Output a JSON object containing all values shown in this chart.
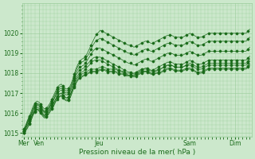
{
  "title": "",
  "xlabel": "Pression niveau de la mer( hPa )",
  "bg_color": "#cce8cc",
  "grid_color": "#99cc99",
  "line_color": "#1a6b1a",
  "marker_color": "#1a6b1a",
  "ylim": [
    1014.8,
    1021.5
  ],
  "yticks": [
    1015,
    1016,
    1017,
    1018,
    1019,
    1020
  ],
  "day_labels": [
    "Mer",
    "Ven",
    "Jeu",
    "Sam",
    "Dim"
  ],
  "day_positions": [
    0,
    8,
    40,
    88,
    112
  ],
  "total_steps": 120,
  "series": [
    [
      1015.0,
      1015.15,
      1015.3,
      1015.5,
      1015.7,
      1015.95,
      1016.1,
      1016.2,
      1016.15,
      1016.05,
      1015.9,
      1015.8,
      1015.85,
      1015.95,
      1016.1,
      1016.25,
      1016.4,
      1016.6,
      1016.75,
      1016.85,
      1016.9,
      1016.8,
      1016.7,
      1016.65,
      1016.7,
      1016.85,
      1017.1,
      1017.35,
      1017.55,
      1017.7,
      1017.8,
      1017.85,
      1017.9,
      1017.95,
      1018.0,
      1018.05,
      1018.1,
      1018.1,
      1018.1,
      1018.1,
      1018.15,
      1018.2,
      1018.2,
      1018.2,
      1018.15,
      1018.1,
      1018.1,
      1018.1,
      1018.1,
      1018.1,
      1018.05,
      1018.0,
      1018.0,
      1018.0,
      1017.95,
      1017.9,
      1017.9,
      1017.9,
      1017.9,
      1017.9,
      1017.95,
      1018.0,
      1018.05,
      1018.1,
      1018.1,
      1018.1,
      1018.1,
      1018.05,
      1018.0,
      1018.0,
      1018.0,
      1018.0,
      1018.0,
      1018.0,
      1018.05,
      1018.1,
      1018.15,
      1018.2,
      1018.2,
      1018.2,
      1018.15,
      1018.1,
      1018.1,
      1018.1,
      1018.1,
      1018.1,
      1018.15,
      1018.2,
      1018.2,
      1018.2,
      1018.15,
      1018.1,
      1018.05,
      1018.0,
      1018.0,
      1018.0,
      1018.05,
      1018.1,
      1018.15,
      1018.2,
      1018.2,
      1018.2,
      1018.2,
      1018.2,
      1018.2,
      1018.2,
      1018.2,
      1018.2,
      1018.2,
      1018.2,
      1018.2,
      1018.2,
      1018.2,
      1018.2,
      1018.2,
      1018.2,
      1018.2,
      1018.2,
      1018.2,
      1018.2,
      1018.3,
      1018.4
    ],
    [
      1015.0,
      1015.2,
      1015.4,
      1015.6,
      1015.8,
      1016.0,
      1016.1,
      1016.2,
      1016.2,
      1016.1,
      1015.95,
      1015.85,
      1015.95,
      1016.05,
      1016.2,
      1016.35,
      1016.5,
      1016.7,
      1016.85,
      1016.95,
      1017.0,
      1016.9,
      1016.8,
      1016.75,
      1016.8,
      1016.95,
      1017.2,
      1017.45,
      1017.65,
      1017.8,
      1017.9,
      1017.95,
      1018.0,
      1018.05,
      1018.1,
      1018.15,
      1018.2,
      1018.2,
      1018.2,
      1018.2,
      1018.25,
      1018.3,
      1018.3,
      1018.3,
      1018.25,
      1018.2,
      1018.2,
      1018.2,
      1018.2,
      1018.2,
      1018.15,
      1018.1,
      1018.1,
      1018.1,
      1018.05,
      1018.0,
      1018.0,
      1018.0,
      1018.0,
      1018.0,
      1018.05,
      1018.1,
      1018.15,
      1018.2,
      1018.2,
      1018.2,
      1018.2,
      1018.15,
      1018.1,
      1018.1,
      1018.1,
      1018.15,
      1018.2,
      1018.2,
      1018.25,
      1018.3,
      1018.35,
      1018.4,
      1018.4,
      1018.4,
      1018.35,
      1018.3,
      1018.3,
      1018.3,
      1018.3,
      1018.3,
      1018.35,
      1018.4,
      1018.4,
      1018.4,
      1018.35,
      1018.3,
      1018.25,
      1018.2,
      1018.2,
      1018.2,
      1018.25,
      1018.3,
      1018.35,
      1018.4,
      1018.4,
      1018.4,
      1018.4,
      1018.4,
      1018.4,
      1018.4,
      1018.4,
      1018.4,
      1018.4,
      1018.4,
      1018.4,
      1018.4,
      1018.4,
      1018.4,
      1018.4,
      1018.4,
      1018.4,
      1018.4,
      1018.4,
      1018.4,
      1018.5,
      1018.6
    ],
    [
      1015.0,
      1015.1,
      1015.25,
      1015.45,
      1015.65,
      1015.9,
      1016.05,
      1016.15,
      1016.1,
      1016.0,
      1015.85,
      1015.75,
      1015.8,
      1015.9,
      1016.05,
      1016.2,
      1016.35,
      1016.55,
      1016.7,
      1016.8,
      1016.85,
      1016.75,
      1016.65,
      1016.6,
      1016.65,
      1016.8,
      1017.05,
      1017.3,
      1017.5,
      1017.65,
      1017.75,
      1017.8,
      1017.85,
      1017.9,
      1017.95,
      1018.0,
      1018.05,
      1018.05,
      1018.05,
      1018.05,
      1018.1,
      1018.15,
      1018.15,
      1018.15,
      1018.1,
      1018.05,
      1018.05,
      1018.05,
      1018.05,
      1018.05,
      1018.0,
      1017.95,
      1017.95,
      1017.95,
      1017.9,
      1017.85,
      1017.85,
      1017.85,
      1017.85,
      1017.85,
      1017.9,
      1017.95,
      1018.0,
      1018.05,
      1018.05,
      1018.05,
      1018.05,
      1018.0,
      1017.95,
      1017.95,
      1017.95,
      1018.0,
      1018.05,
      1018.05,
      1018.1,
      1018.15,
      1018.2,
      1018.25,
      1018.25,
      1018.25,
      1018.2,
      1018.15,
      1018.15,
      1018.15,
      1018.15,
      1018.15,
      1018.2,
      1018.25,
      1018.25,
      1018.25,
      1018.2,
      1018.15,
      1018.1,
      1018.05,
      1018.05,
      1018.05,
      1018.1,
      1018.15,
      1018.2,
      1018.25,
      1018.25,
      1018.25,
      1018.25,
      1018.25,
      1018.25,
      1018.25,
      1018.25,
      1018.25,
      1018.25,
      1018.25,
      1018.25,
      1018.25,
      1018.25,
      1018.25,
      1018.25,
      1018.25,
      1018.25,
      1018.25,
      1018.25,
      1018.25,
      1018.35,
      1018.45
    ],
    [
      1015.1,
      1015.25,
      1015.4,
      1015.6,
      1015.8,
      1016.05,
      1016.2,
      1016.3,
      1016.25,
      1016.15,
      1016.0,
      1015.9,
      1015.95,
      1016.05,
      1016.2,
      1016.35,
      1016.5,
      1016.7,
      1016.85,
      1016.95,
      1017.0,
      1016.9,
      1016.8,
      1016.75,
      1016.8,
      1016.95,
      1017.2,
      1017.5,
      1017.75,
      1017.9,
      1018.0,
      1018.05,
      1018.1,
      1018.2,
      1018.3,
      1018.4,
      1018.5,
      1018.6,
      1018.65,
      1018.65,
      1018.65,
      1018.65,
      1018.6,
      1018.55,
      1018.5,
      1018.45,
      1018.4,
      1018.35,
      1018.3,
      1018.25,
      1018.2,
      1018.15,
      1018.1,
      1018.05,
      1018.0,
      1017.95,
      1017.9,
      1017.9,
      1017.85,
      1017.8,
      1017.85,
      1017.9,
      1017.95,
      1018.0,
      1018.05,
      1018.1,
      1018.1,
      1018.05,
      1018.0,
      1018.0,
      1018.05,
      1018.1,
      1018.15,
      1018.2,
      1018.25,
      1018.3,
      1018.35,
      1018.4,
      1018.4,
      1018.4,
      1018.35,
      1018.3,
      1018.3,
      1018.3,
      1018.3,
      1018.3,
      1018.35,
      1018.4,
      1018.45,
      1018.5,
      1018.45,
      1018.4,
      1018.35,
      1018.3,
      1018.3,
      1018.3,
      1018.35,
      1018.4,
      1018.45,
      1018.5,
      1018.5,
      1018.5,
      1018.5,
      1018.5,
      1018.5,
      1018.5,
      1018.5,
      1018.5,
      1018.5,
      1018.5,
      1018.5,
      1018.5,
      1018.5,
      1018.5,
      1018.5,
      1018.5,
      1018.5,
      1018.5,
      1018.5,
      1018.5,
      1018.6,
      1018.7
    ],
    [
      1015.1,
      1015.3,
      1015.5,
      1015.7,
      1015.9,
      1016.15,
      1016.3,
      1016.4,
      1016.35,
      1016.25,
      1016.1,
      1016.0,
      1016.05,
      1016.15,
      1016.3,
      1016.5,
      1016.65,
      1016.85,
      1017.0,
      1017.1,
      1017.15,
      1017.05,
      1016.95,
      1016.9,
      1016.95,
      1017.1,
      1017.35,
      1017.65,
      1017.9,
      1018.05,
      1018.15,
      1018.2,
      1018.25,
      1018.35,
      1018.45,
      1018.55,
      1018.65,
      1018.75,
      1018.8,
      1018.8,
      1018.8,
      1018.8,
      1018.75,
      1018.7,
      1018.65,
      1018.6,
      1018.55,
      1018.5,
      1018.45,
      1018.4,
      1018.35,
      1018.3,
      1018.25,
      1018.2,
      1018.15,
      1018.1,
      1018.05,
      1018.05,
      1018.0,
      1017.95,
      1018.0,
      1018.05,
      1018.1,
      1018.15,
      1018.2,
      1018.25,
      1018.25,
      1018.2,
      1018.15,
      1018.15,
      1018.2,
      1018.25,
      1018.3,
      1018.35,
      1018.4,
      1018.45,
      1018.5,
      1018.55,
      1018.55,
      1018.55,
      1018.5,
      1018.45,
      1018.45,
      1018.45,
      1018.45,
      1018.45,
      1018.5,
      1018.55,
      1018.6,
      1018.65,
      1018.6,
      1018.55,
      1018.5,
      1018.45,
      1018.45,
      1018.45,
      1018.5,
      1018.55,
      1018.6,
      1018.65,
      1018.65,
      1018.65,
      1018.65,
      1018.65,
      1018.65,
      1018.65,
      1018.65,
      1018.65,
      1018.65,
      1018.65,
      1018.65,
      1018.65,
      1018.65,
      1018.65,
      1018.65,
      1018.65,
      1018.65,
      1018.65,
      1018.65,
      1018.65,
      1018.75,
      1018.85
    ],
    [
      1015.1,
      1015.3,
      1015.55,
      1015.75,
      1015.95,
      1016.2,
      1016.35,
      1016.45,
      1016.4,
      1016.3,
      1016.15,
      1016.05,
      1016.1,
      1016.2,
      1016.35,
      1016.55,
      1016.7,
      1016.9,
      1017.1,
      1017.2,
      1017.25,
      1017.15,
      1017.05,
      1017.0,
      1017.05,
      1017.2,
      1017.45,
      1017.75,
      1018.0,
      1018.2,
      1018.3,
      1018.35,
      1018.4,
      1018.5,
      1018.65,
      1018.8,
      1018.95,
      1019.1,
      1019.2,
      1019.25,
      1019.25,
      1019.25,
      1019.2,
      1019.15,
      1019.1,
      1019.05,
      1019.0,
      1018.95,
      1018.9,
      1018.85,
      1018.8,
      1018.75,
      1018.7,
      1018.65,
      1018.6,
      1018.55,
      1018.5,
      1018.5,
      1018.45,
      1018.4,
      1018.45,
      1018.5,
      1018.55,
      1018.6,
      1018.65,
      1018.7,
      1018.7,
      1018.65,
      1018.6,
      1018.6,
      1018.65,
      1018.7,
      1018.75,
      1018.8,
      1018.85,
      1018.9,
      1018.95,
      1019.0,
      1019.0,
      1019.0,
      1018.95,
      1018.9,
      1018.9,
      1018.9,
      1018.9,
      1018.9,
      1018.95,
      1019.0,
      1019.05,
      1019.1,
      1019.05,
      1019.0,
      1018.95,
      1018.9,
      1018.9,
      1018.9,
      1018.95,
      1019.0,
      1019.05,
      1019.1,
      1019.1,
      1019.1,
      1019.1,
      1019.1,
      1019.1,
      1019.1,
      1019.1,
      1019.1,
      1019.1,
      1019.1,
      1019.1,
      1019.1,
      1019.1,
      1019.1,
      1019.1,
      1019.1,
      1019.1,
      1019.1,
      1019.1,
      1019.1,
      1019.2,
      1019.3
    ],
    [
      1015.15,
      1015.35,
      1015.6,
      1015.8,
      1016.0,
      1016.25,
      1016.4,
      1016.5,
      1016.45,
      1016.35,
      1016.2,
      1016.1,
      1016.15,
      1016.25,
      1016.4,
      1016.6,
      1016.8,
      1017.0,
      1017.2,
      1017.3,
      1017.35,
      1017.25,
      1017.15,
      1017.1,
      1017.15,
      1017.3,
      1017.55,
      1017.85,
      1018.15,
      1018.35,
      1018.5,
      1018.55,
      1018.6,
      1018.7,
      1018.85,
      1019.0,
      1019.2,
      1019.4,
      1019.55,
      1019.65,
      1019.7,
      1019.75,
      1019.7,
      1019.65,
      1019.6,
      1019.55,
      1019.5,
      1019.45,
      1019.4,
      1019.35,
      1019.3,
      1019.25,
      1019.2,
      1019.15,
      1019.1,
      1019.05,
      1019.0,
      1019.0,
      1018.95,
      1018.9,
      1018.95,
      1019.0,
      1019.05,
      1019.1,
      1019.15,
      1019.2,
      1019.2,
      1019.15,
      1019.1,
      1019.1,
      1019.15,
      1019.2,
      1019.25,
      1019.3,
      1019.35,
      1019.4,
      1019.45,
      1019.5,
      1019.5,
      1019.5,
      1019.45,
      1019.4,
      1019.4,
      1019.4,
      1019.4,
      1019.4,
      1019.45,
      1019.5,
      1019.55,
      1019.6,
      1019.55,
      1019.5,
      1019.45,
      1019.4,
      1019.4,
      1019.4,
      1019.45,
      1019.5,
      1019.55,
      1019.6,
      1019.6,
      1019.6,
      1019.6,
      1019.6,
      1019.6,
      1019.6,
      1019.6,
      1019.6,
      1019.6,
      1019.6,
      1019.6,
      1019.6,
      1019.6,
      1019.6,
      1019.6,
      1019.6,
      1019.6,
      1019.6,
      1019.6,
      1019.6,
      1019.7,
      1019.8
    ],
    [
      1015.2,
      1015.4,
      1015.65,
      1015.85,
      1016.1,
      1016.35,
      1016.5,
      1016.6,
      1016.55,
      1016.45,
      1016.3,
      1016.2,
      1016.25,
      1016.35,
      1016.5,
      1016.7,
      1016.9,
      1017.1,
      1017.3,
      1017.4,
      1017.45,
      1017.35,
      1017.25,
      1017.2,
      1017.25,
      1017.4,
      1017.65,
      1017.95,
      1018.25,
      1018.45,
      1018.6,
      1018.7,
      1018.75,
      1018.85,
      1019.0,
      1019.2,
      1019.4,
      1019.6,
      1019.8,
      1019.95,
      1020.05,
      1020.15,
      1020.1,
      1020.05,
      1020.0,
      1019.95,
      1019.9,
      1019.85,
      1019.8,
      1019.75,
      1019.7,
      1019.65,
      1019.6,
      1019.55,
      1019.5,
      1019.45,
      1019.4,
      1019.4,
      1019.35,
      1019.3,
      1019.35,
      1019.4,
      1019.45,
      1019.5,
      1019.55,
      1019.6,
      1019.6,
      1019.55,
      1019.5,
      1019.5,
      1019.55,
      1019.6,
      1019.65,
      1019.7,
      1019.75,
      1019.8,
      1019.85,
      1019.9,
      1019.9,
      1019.9,
      1019.85,
      1019.8,
      1019.8,
      1019.8,
      1019.8,
      1019.8,
      1019.85,
      1019.9,
      1019.95,
      1020.0,
      1019.95,
      1019.9,
      1019.85,
      1019.8,
      1019.8,
      1019.8,
      1019.85,
      1019.9,
      1019.95,
      1020.0,
      1020.0,
      1020.0,
      1020.0,
      1020.0,
      1020.0,
      1020.0,
      1020.0,
      1020.0,
      1020.0,
      1020.0,
      1020.0,
      1020.0,
      1020.0,
      1020.0,
      1020.0,
      1020.0,
      1020.0,
      1020.0,
      1020.0,
      1020.0,
      1020.1,
      1020.2
    ]
  ]
}
